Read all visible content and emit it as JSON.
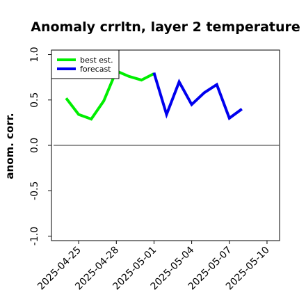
{
  "chart_data": {
    "type": "line",
    "title": "Anomaly crrltn, layer 2 temperature",
    "xlabel": "",
    "ylabel": "anom. corr.",
    "ylim": [
      -1.05,
      1.05
    ],
    "yticks": [
      "-1.0",
      "-0.5",
      "0.0",
      "0.5",
      "1.0"
    ],
    "ytick_values": [
      -1.0,
      -0.5,
      0.0,
      0.5,
      1.0
    ],
    "xlim": [
      "2025-04-22T20:00",
      "2025-05-11T00:00"
    ],
    "xticks": [
      "2025-04-25",
      "2025-04-28",
      "2025-05-01",
      "2025-05-04",
      "2025-05-07",
      "2025-05-10"
    ],
    "highlight_tick": "2025-05-01",
    "highlight_color": "#228b22",
    "reference_line": {
      "y": 0.0,
      "color": "#555555",
      "x_start": "2025-04-23T00:00",
      "x_end": "2025-05-11T00:00"
    },
    "series": [
      {
        "name": "best est.",
        "color": "#00ee00",
        "x": [
          "2025-04-24T00:00",
          "2025-04-25T00:00",
          "2025-04-26T00:00",
          "2025-04-27T00:00",
          "2025-04-28T00:00",
          "2025-04-29T00:00",
          "2025-04-30T00:00",
          "2025-05-01T00:00"
        ],
        "values": [
          0.52,
          0.34,
          0.29,
          0.49,
          0.82,
          0.76,
          0.72,
          0.79
        ]
      },
      {
        "name": "forecast",
        "color": "#0000ee",
        "x": [
          "2025-05-01T00:00",
          "2025-05-02T00:00",
          "2025-05-03T00:00",
          "2025-05-04T00:00",
          "2025-05-05T00:00",
          "2025-05-06T00:00",
          "2025-05-07T00:00",
          "2025-05-08T00:00"
        ],
        "values": [
          0.8,
          0.34,
          0.7,
          0.45,
          0.58,
          0.67,
          0.3,
          0.4
        ]
      }
    ],
    "legend_position": "top-left",
    "grid": false
  }
}
